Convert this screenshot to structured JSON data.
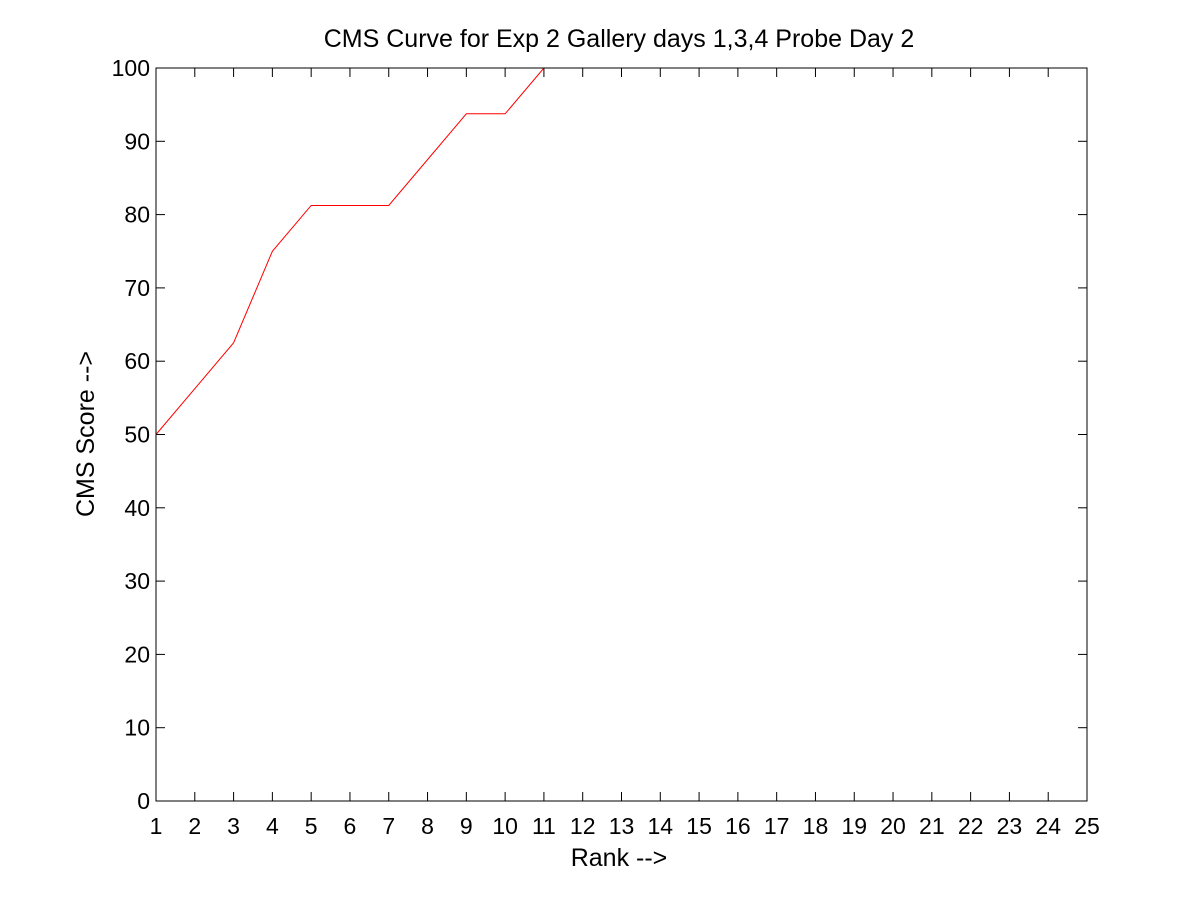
{
  "chart_data": {
    "type": "line",
    "title": "CMS Curve for Exp 2 Gallery days 1,3,4 Probe Day 2",
    "xlabel": "Rank -->",
    "ylabel": "CMS Score -->",
    "xlim": [
      1,
      25
    ],
    "ylim": [
      0,
      100
    ],
    "xticks": [
      1,
      2,
      3,
      4,
      5,
      6,
      7,
      8,
      9,
      10,
      11,
      12,
      13,
      14,
      15,
      16,
      17,
      18,
      19,
      20,
      21,
      22,
      23,
      24,
      25
    ],
    "yticks": [
      0,
      10,
      20,
      30,
      40,
      50,
      60,
      70,
      80,
      90,
      100
    ],
    "grid": false,
    "series": [
      {
        "color": "#ff0000",
        "x": [
          1,
          2,
          3,
          4,
          5,
          6,
          7,
          8,
          9,
          10,
          11,
          12,
          13,
          14,
          15,
          16,
          17,
          18,
          19,
          20,
          21,
          22,
          23,
          24,
          25
        ],
        "values": [
          50,
          56.25,
          62.5,
          75,
          81.25,
          81.25,
          81.25,
          87.5,
          93.75,
          93.75,
          100,
          100,
          100,
          100,
          100,
          100,
          100,
          100,
          100,
          100,
          100,
          100,
          100,
          100,
          100
        ]
      }
    ]
  }
}
